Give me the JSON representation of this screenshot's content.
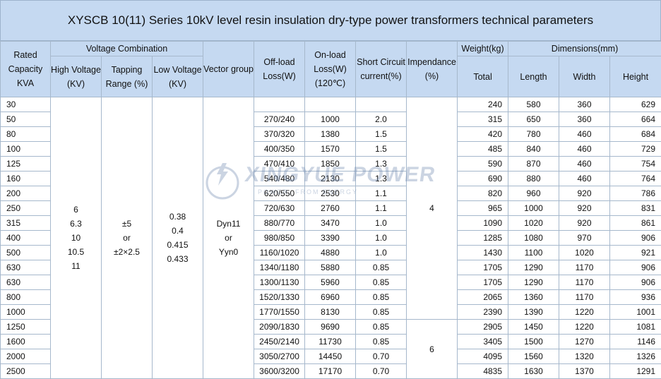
{
  "title": "XYSCB 10(11) Series 10kV level resin insulation dry-type power transformers technical parameters",
  "headers": {
    "rated": "Rated Capacity KVA",
    "voltage_combination": "Voltage Combination",
    "high_voltage": "High Voltage (KV)",
    "tapping_range": "Tapping Range (%)",
    "low_voltage": "Low Voltage (KV)",
    "vector_group": "Vector group",
    "off_load": "Off-load Loss(W)",
    "on_load": "On-load Loss(W) (120℃)",
    "short_circuit": "Short Circuit current(%)",
    "impedance": "Impendance (%)",
    "weight": "Weight(kg)",
    "dimensions": "Dimensions(mm)",
    "total": "Total",
    "length": "Length",
    "width": "Width",
    "height": "Height"
  },
  "merged": {
    "high_voltage": [
      "6",
      "6.3",
      "10",
      "10.5",
      "11"
    ],
    "tapping_range": [
      "±5",
      "or",
      "±2×2.5"
    ],
    "low_voltage": [
      "0.38",
      "0.4",
      "0.415",
      "0.433"
    ],
    "vector_group": [
      "Dyn11",
      "or",
      "Yyn0"
    ],
    "impedance_a": "4",
    "impedance_b": "6"
  },
  "watermark": {
    "logo": "XINGYUE POWER",
    "tagline": "POWER, FROM ENERGY"
  },
  "rows": [
    {
      "kva": "30",
      "off": "",
      "on": "",
      "sc": "",
      "total": "240",
      "length": "580",
      "width": "360",
      "height": "629"
    },
    {
      "kva": "50",
      "off": "270/240",
      "on": "1000",
      "sc": "2.0",
      "total": "315",
      "length": "650",
      "width": "360",
      "height": "664"
    },
    {
      "kva": "80",
      "off": "370/320",
      "on": "1380",
      "sc": "1.5",
      "total": "420",
      "length": "780",
      "width": "460",
      "height": "684"
    },
    {
      "kva": "100",
      "off": "400/350",
      "on": "1570",
      "sc": "1.5",
      "total": "485",
      "length": "840",
      "width": "460",
      "height": "729"
    },
    {
      "kva": "125",
      "off": "470/410",
      "on": "1850",
      "sc": "1.3",
      "total": "590",
      "length": "870",
      "width": "460",
      "height": "754"
    },
    {
      "kva": "160",
      "off": "540/480",
      "on": "2130",
      "sc": "1.3",
      "total": "690",
      "length": "880",
      "width": "460",
      "height": "764"
    },
    {
      "kva": "200",
      "off": "620/550",
      "on": "2530",
      "sc": "1.1",
      "total": "820",
      "length": "960",
      "width": "920",
      "height": "786"
    },
    {
      "kva": "250",
      "off": "720/630",
      "on": "2760",
      "sc": "1.1",
      "total": "965",
      "length": "1000",
      "width": "920",
      "height": "831"
    },
    {
      "kva": "315",
      "off": "880/770",
      "on": "3470",
      "sc": "1.0",
      "total": "1090",
      "length": "1020",
      "width": "920",
      "height": "861"
    },
    {
      "kva": "400",
      "off": "980/850",
      "on": "3390",
      "sc": "1.0",
      "total": "1285",
      "length": "1080",
      "width": "970",
      "height": "906"
    },
    {
      "kva": "500",
      "off": "1160/1020",
      "on": "4880",
      "sc": "1.0",
      "total": "1430",
      "length": "1100",
      "width": "1020",
      "height": "921"
    },
    {
      "kva": "630",
      "off": "1340/1180",
      "on": "5880",
      "sc": "0.85",
      "total": "1705",
      "length": "1290",
      "width": "1170",
      "height": "906"
    },
    {
      "kva": "630",
      "off": "1300/1130",
      "on": "5960",
      "sc": "0.85",
      "total": "1705",
      "length": "1290",
      "width": "1170",
      "height": "906"
    },
    {
      "kva": "800",
      "off": "1520/1330",
      "on": "6960",
      "sc": "0.85",
      "total": "2065",
      "length": "1360",
      "width": "1170",
      "height": "936"
    },
    {
      "kva": "1000",
      "off": "1770/1550",
      "on": "8130",
      "sc": "0.85",
      "total": "2390",
      "length": "1390",
      "width": "1220",
      "height": "1001"
    },
    {
      "kva": "1250",
      "off": "2090/1830",
      "on": "9690",
      "sc": "0.85",
      "total": "2905",
      "length": "1450",
      "width": "1220",
      "height": "1081"
    },
    {
      "kva": "1600",
      "off": "2450/2140",
      "on": "11730",
      "sc": "0.85",
      "total": "3405",
      "length": "1500",
      "width": "1270",
      "height": "1146"
    },
    {
      "kva": "2000",
      "off": "3050/2700",
      "on": "14450",
      "sc": "0.70",
      "total": "4095",
      "length": "1560",
      "width": "1320",
      "height": "1326"
    },
    {
      "kva": "2500",
      "off": "3600/3200",
      "on": "17170",
      "sc": "0.70",
      "total": "4835",
      "length": "1630",
      "width": "1370",
      "height": "1291"
    }
  ]
}
